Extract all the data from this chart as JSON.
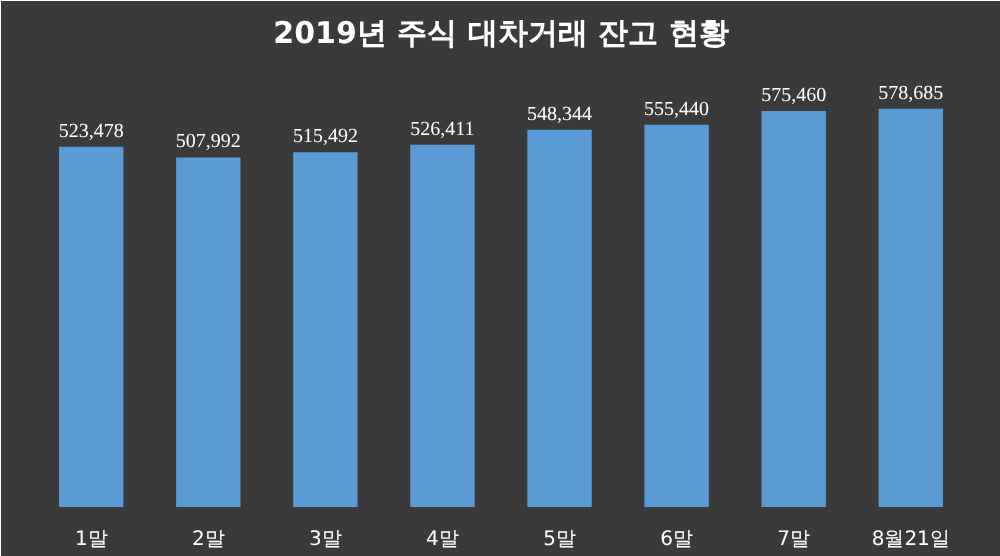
{
  "chart_data": {
    "type": "bar",
    "title": "2019년 주식 대차거래 잔고 현황",
    "categories": [
      "1말",
      "2말",
      "3말",
      "4말",
      "5말",
      "6말",
      "7말",
      "8월21일"
    ],
    "values": [
      523478,
      507992,
      515492,
      526411,
      548344,
      555440,
      575460,
      578685
    ],
    "value_labels": [
      "523,478",
      "507,992",
      "515,492",
      "526,411",
      "548,344",
      "555,440",
      "575,460",
      "578,685"
    ],
    "color": "#5b9bd5"
  }
}
